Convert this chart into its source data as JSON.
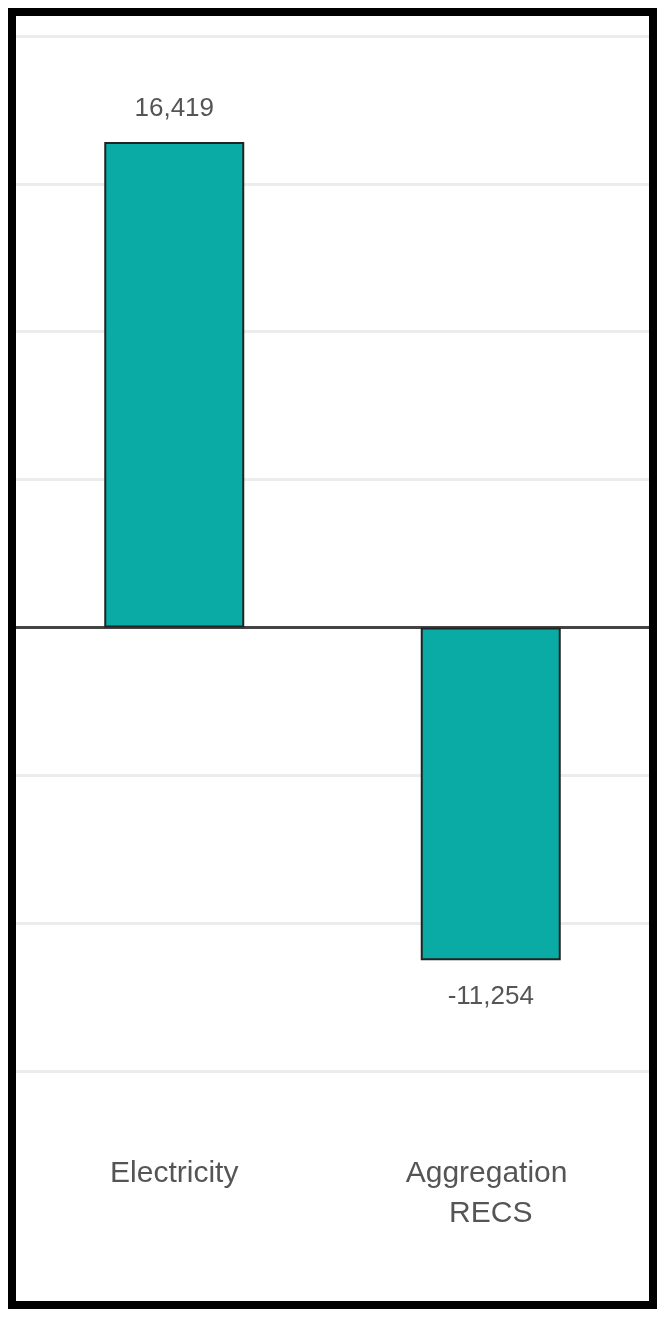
{
  "chart_data": {
    "type": "bar",
    "categories": [
      "Electricity",
      "Aggregation RECS"
    ],
    "values": [
      16419,
      -11254
    ],
    "value_labels": [
      "16,419",
      "-11,254"
    ],
    "color": "#0aaba5",
    "grid": "y",
    "tick_labels": "x"
  }
}
